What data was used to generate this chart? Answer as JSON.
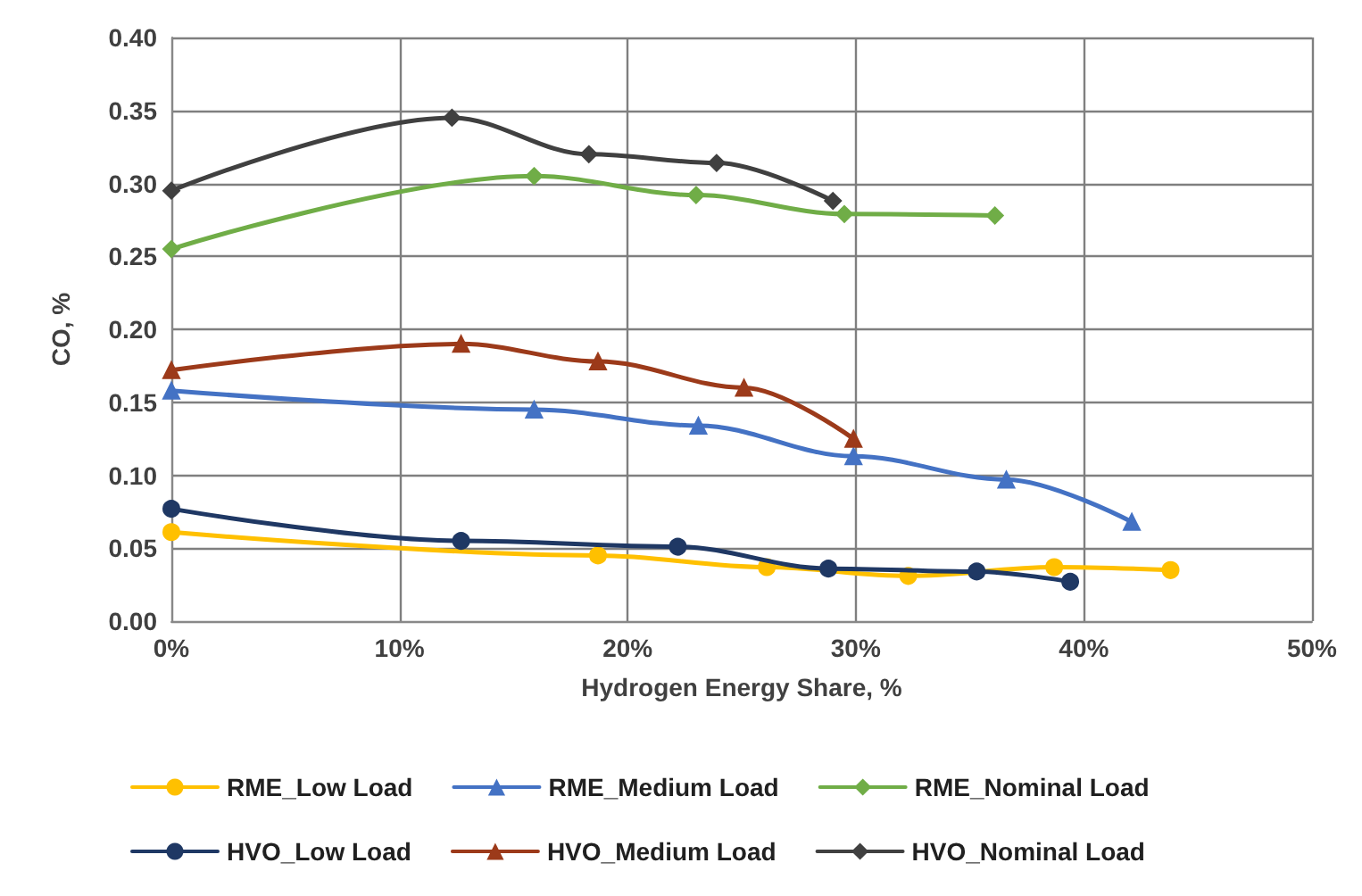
{
  "chart_data": {
    "type": "line",
    "xlabel": "Hydrogen Energy Share, %",
    "ylabel": "CO, %",
    "xlim": [
      0,
      50
    ],
    "xticks": [
      {
        "value": 0,
        "label": "0%"
      },
      {
        "value": 10,
        "label": "10%"
      },
      {
        "value": 20,
        "label": "20%"
      },
      {
        "value": 30,
        "label": "30%"
      },
      {
        "value": 40,
        "label": "40%"
      },
      {
        "value": 50,
        "label": "50%"
      }
    ],
    "ylim": [
      0,
      0.4
    ],
    "yticks": [
      {
        "value": 0,
        "label": "0.00"
      },
      {
        "value": 0.05,
        "label": "0.05"
      },
      {
        "value": 0.1,
        "label": "0.10"
      },
      {
        "value": 0.15,
        "label": "0.15"
      },
      {
        "value": 0.2,
        "label": "0.20"
      },
      {
        "value": 0.25,
        "label": "0.25"
      },
      {
        "value": 0.3,
        "label": "0.30"
      },
      {
        "value": 0.35,
        "label": "0.35"
      },
      {
        "value": 0.4,
        "label": "0.40"
      }
    ],
    "grid": true,
    "legend": "bottom",
    "line_style": "solid",
    "series": [
      {
        "name": "RME_Low Load",
        "color": "#ffc000",
        "marker": "circle",
        "x": [
          0,
          18.7,
          26.1,
          32.3,
          38.7,
          43.8
        ],
        "values": [
          0.061,
          0.045,
          0.037,
          0.031,
          0.037,
          0.035
        ]
      },
      {
        "name": "RME_Medium Load",
        "color": "#4472c4",
        "marker": "triangle",
        "x": [
          0,
          15.9,
          23.1,
          29.9,
          36.6,
          42.1
        ],
        "values": [
          0.158,
          0.145,
          0.134,
          0.113,
          0.097,
          0.068
        ]
      },
      {
        "name": "RME_Nominal Load",
        "color": "#70ad47",
        "marker": "diamond",
        "x": [
          0,
          15.9,
          23,
          29.5,
          36.1
        ],
        "values": [
          0.255,
          0.305,
          0.292,
          0.279,
          0.278
        ]
      },
      {
        "name": "HVO_Low Load",
        "color": "#1f3864",
        "marker": "circle",
        "x": [
          0,
          12.7,
          22.2,
          28.8,
          35.3,
          39.4
        ],
        "values": [
          0.077,
          0.055,
          0.051,
          0.036,
          0.034,
          0.027
        ]
      },
      {
        "name": "HVO_Medium Load",
        "color": "#9c3a1a",
        "marker": "triangle",
        "x": [
          0,
          12.7,
          18.7,
          25.1,
          29.9
        ],
        "values": [
          0.172,
          0.19,
          0.178,
          0.16,
          0.125
        ]
      },
      {
        "name": "HVO_Nominal Load",
        "color": "#404040",
        "marker": "diamond",
        "x": [
          0,
          12.3,
          18.3,
          23.9,
          29
        ],
        "values": [
          0.295,
          0.345,
          0.32,
          0.314,
          0.288
        ]
      }
    ]
  }
}
